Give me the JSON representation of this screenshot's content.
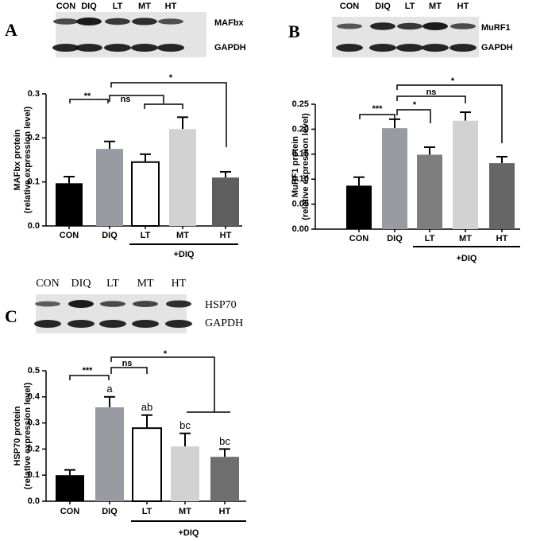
{
  "chart_data": [
    {
      "type": "bar",
      "panel": "A",
      "blot_lanes": [
        "CON",
        "DIQ",
        "LT",
        "MT",
        "HT"
      ],
      "blot_labels": [
        "MAFbx",
        "GAPDH"
      ],
      "y_label": [
        "MAFbx protein",
        "(relative expression level)"
      ],
      "categories": [
        "CON",
        "DIQ",
        "LT",
        "MT",
        "HT"
      ],
      "values": [
        0.097,
        0.175,
        0.145,
        0.22,
        0.11
      ],
      "errors": [
        0.015,
        0.017,
        0.018,
        0.027,
        0.013
      ],
      "colors": [
        "#000000",
        "#9a9aa2",
        "#ffffff",
        "#d2d2d2",
        "#5e5e5e"
      ],
      "group_label": "+DIQ",
      "annotations": [
        "**",
        "ns",
        "*"
      ],
      "ylim": [
        0,
        0.3
      ],
      "yticks": [
        {
          "value": 0,
          "label": "0.0"
        },
        0.1,
        0.2,
        0.3
      ]
    },
    {
      "type": "bar",
      "panel": "B",
      "blot_lanes": [
        "CON",
        "DIQ",
        "LT",
        "MT",
        "HT"
      ],
      "blot_labels": [
        "MuRF1",
        "GAPDH"
      ],
      "y_label": [
        "MuRF1 protein",
        "(relative expression level)"
      ],
      "categories": [
        "CON",
        "DIQ",
        "LT",
        "MT",
        "HT"
      ],
      "values": [
        0.087,
        0.202,
        0.149,
        0.217,
        0.132
      ],
      "errors": [
        0.017,
        0.018,
        0.015,
        0.017,
        0.013
      ],
      "colors": [
        "#000000",
        "#9a9aa2",
        "#7e7e7e",
        "#d2d2d2",
        "#666666"
      ],
      "group_label": "+DIQ",
      "annotations": [
        "***",
        "*",
        "ns",
        "*"
      ],
      "ylim": [
        0,
        0.25
      ],
      "yticks": [
        {
          "value": 0,
          "label": "0.00"
        },
        0.05,
        {
          "value": 0.1,
          "label": "0.10"
        },
        0.15,
        {
          "value": 0.2,
          "label": "0.20"
        },
        0.25
      ]
    },
    {
      "type": "bar",
      "panel": "C",
      "blot_lanes": [
        "CON",
        "DIQ",
        "LT",
        "MT",
        "HT"
      ],
      "blot_labels": [
        "HSP70",
        "GAPDH"
      ],
      "y_label": [
        "HSP70 protein",
        "(relative expression level)"
      ],
      "categories": [
        "CON",
        "DIQ",
        "LT",
        "MT",
        "HT"
      ],
      "values": [
        0.1,
        0.36,
        0.28,
        0.21,
        0.17
      ],
      "errors": [
        0.02,
        0.04,
        0.05,
        0.05,
        0.03
      ],
      "letters": [
        null,
        "a",
        "ab",
        "bc",
        "bc"
      ],
      "colors": [
        "#000000",
        "#9a9aa2",
        "#ffffff",
        "#d2d2d2",
        "#6e6e6e"
      ],
      "group_label": "+DIQ",
      "annotations": [
        "***",
        "ns",
        "*"
      ],
      "ylim": [
        0,
        0.5
      ],
      "yticks": [
        {
          "value": 0,
          "label": "0.0"
        },
        0.1,
        0.2,
        0.3,
        0.4,
        0.5
      ]
    }
  ]
}
